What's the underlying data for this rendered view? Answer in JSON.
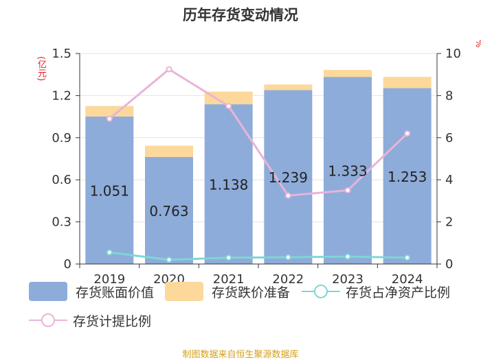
{
  "chart_data": {
    "type": "bar",
    "title": "历年存货变动情况",
    "categories": [
      "2019",
      "2020",
      "2021",
      "2022",
      "2023",
      "2024"
    ],
    "left_axis": {
      "unit": "(亿元)",
      "ylim": [
        0,
        1.5
      ],
      "ticks": [
        "0",
        "0.3",
        "0.6",
        "0.9",
        "1.2",
        "1.5"
      ],
      "tick_values": [
        0,
        0.3,
        0.6,
        0.9,
        1.2,
        1.5
      ]
    },
    "right_axis": {
      "unit": "%",
      "ylim": [
        0,
        10
      ],
      "ticks": [
        "0",
        "2",
        "4",
        "6",
        "8",
        "10"
      ],
      "tick_values": [
        0,
        2,
        4,
        6,
        8,
        10
      ]
    },
    "series": [
      {
        "name": "存货账面价值",
        "type": "bar",
        "axis": "left",
        "color": "#8eacd9",
        "values": [
          1.051,
          0.763,
          1.138,
          1.239,
          1.333,
          1.253
        ],
        "labels": [
          "1.051",
          "0.763",
          "1.138",
          "1.239",
          "1.333",
          "1.253"
        ]
      },
      {
        "name": "存货跌价准备",
        "type": "bar",
        "axis": "left",
        "stacked": true,
        "color": "#fcd89a",
        "values": [
          0.075,
          0.08,
          0.09,
          0.04,
          0.05,
          0.08
        ]
      },
      {
        "name": "存货占净资产比例",
        "type": "line",
        "axis": "right",
        "color": "#7fd6d6",
        "values": [
          0.55,
          0.2,
          0.3,
          0.32,
          0.35,
          0.3
        ]
      },
      {
        "name": "存货计提比例",
        "type": "line",
        "axis": "right",
        "color": "#e8b4d8",
        "values": [
          6.9,
          9.25,
          7.5,
          3.25,
          3.5,
          6.2
        ]
      }
    ]
  },
  "footer": "制图数据来自恒生聚源数据库"
}
